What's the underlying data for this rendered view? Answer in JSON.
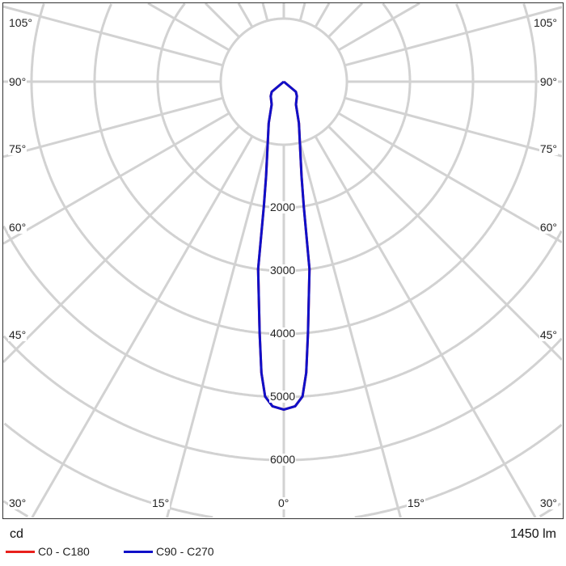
{
  "chart_data": {
    "type": "polar",
    "unit": "cd",
    "flux": "1450 lm",
    "radial_ticks": [
      1000,
      2000,
      3000,
      4000,
      5000,
      6000,
      7000,
      8000,
      9000
    ],
    "radial_labels": [
      "2000",
      "3000",
      "4000",
      "5000",
      "6000"
    ],
    "angle_labels_left": [
      "105°",
      "90°",
      "75°",
      "60°",
      "45°",
      "30°",
      "15°"
    ],
    "angle_labels_right": [
      "105°",
      "90°",
      "75°",
      "60°",
      "45°",
      "30°",
      "15°"
    ],
    "angle_label_zero": "0°",
    "grid": true,
    "series": [
      {
        "name": "C0 - C180",
        "color": "#e8201c",
        "points": [
          [
            0,
            5200
          ],
          [
            2,
            5150
          ],
          [
            3.4,
            5000
          ],
          [
            4.4,
            4630
          ],
          [
            5.5,
            4000
          ],
          [
            7.8,
            3000
          ],
          [
            9.1,
            2000
          ],
          [
            10.6,
            1530
          ],
          [
            14.4,
            1030
          ],
          [
            20,
            700
          ],
          [
            28,
            410
          ],
          [
            42,
            310
          ],
          [
            50,
            250
          ],
          [
            90,
            0
          ]
        ]
      },
      {
        "name": "C90 - C270",
        "color": "#1010c8",
        "points": [
          [
            0,
            5200
          ],
          [
            2,
            5150
          ],
          [
            3.4,
            5000
          ],
          [
            4.4,
            4630
          ],
          [
            5.5,
            4000
          ],
          [
            7.8,
            3000
          ],
          [
            9.1,
            2000
          ],
          [
            10.6,
            1530
          ],
          [
            14.4,
            1030
          ],
          [
            20,
            700
          ],
          [
            28,
            410
          ],
          [
            42,
            310
          ],
          [
            50,
            250
          ],
          [
            90,
            0
          ]
        ]
      }
    ]
  }
}
